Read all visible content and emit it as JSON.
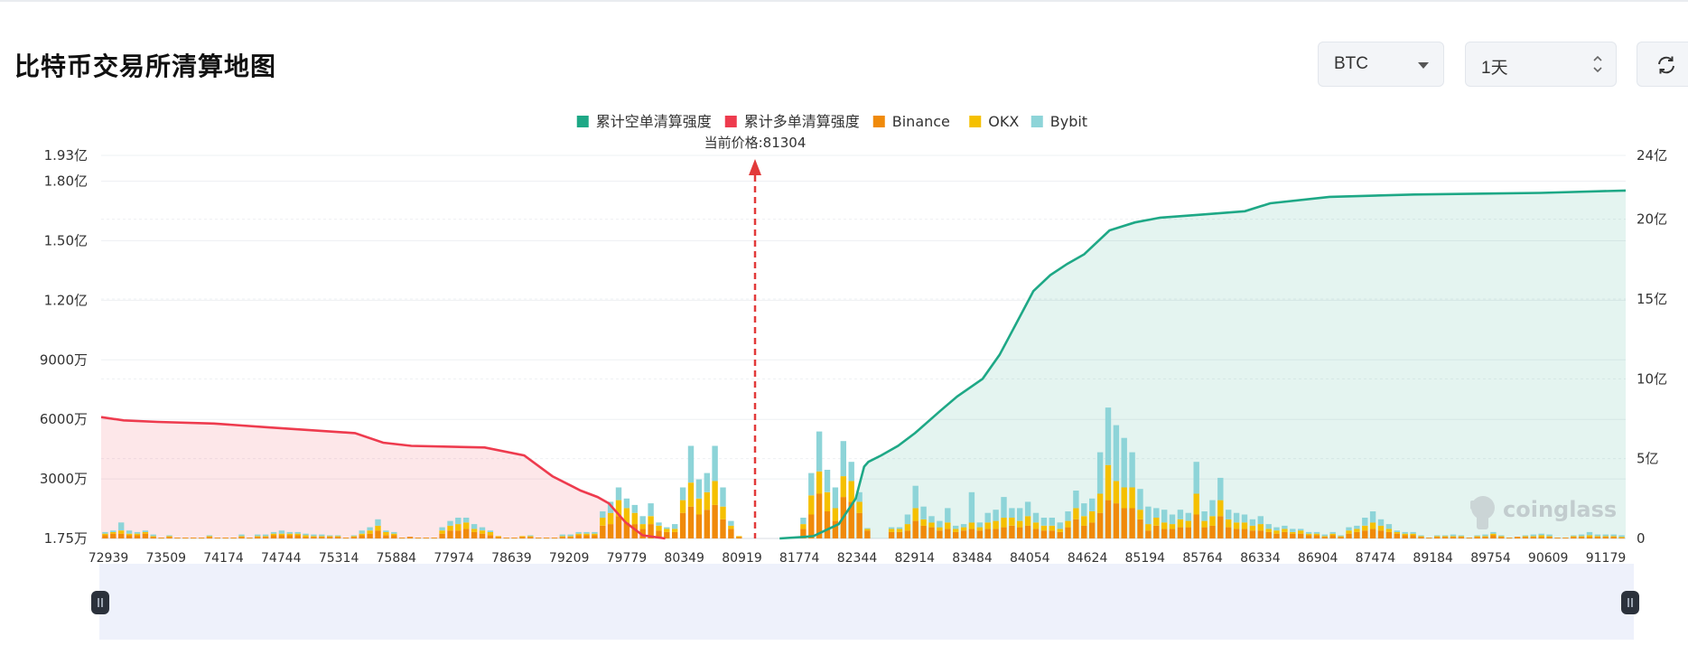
{
  "page": {
    "title": "比特币交易所清算地图"
  },
  "controls": {
    "coin": {
      "value": "BTC"
    },
    "period": {
      "value": "1天"
    },
    "refresh_icon": "refresh-icon",
    "coin_caret_icon": "chevron-down-icon",
    "period_icon": "up-down-icon"
  },
  "watermark": {
    "text": "coinglass",
    "icon": "coinglass-logo-icon"
  },
  "chart_data": {
    "type": "bar",
    "legend": [
      {
        "name": "累计空单清算强度",
        "color": "#1ea886"
      },
      {
        "name": "累计多单清算强度",
        "color": "#ee3b4e"
      },
      {
        "name": "Binance",
        "color": "#f08a0a"
      },
      {
        "name": "OKX",
        "color": "#f5c000"
      },
      {
        "name": "Bybit",
        "color": "#8dd4d8"
      }
    ],
    "legend_position": "top-center",
    "current_price_label": "当前价格:81304",
    "current_price": 81304,
    "x_tick_labels": [
      "72939",
      "73509",
      "74174",
      "74744",
      "75314",
      "75884",
      "77974",
      "78639",
      "79209",
      "79779",
      "80349",
      "80919",
      "81774",
      "82344",
      "82914",
      "83484",
      "84054",
      "84624",
      "85194",
      "85764",
      "86334",
      "86904",
      "87474",
      "89184",
      "89754",
      "90609",
      "91179"
    ],
    "left_axis": {
      "ticks": [
        "1.75万",
        "3000万",
        "6000万",
        "9000万",
        "1.20亿",
        "1.50亿",
        "1.80亿",
        "1.93亿"
      ],
      "values": [
        17500,
        30000000,
        60000000,
        90000000,
        120000000,
        150000000,
        180000000,
        193000000
      ],
      "range": [
        17500,
        193000000
      ]
    },
    "right_axis": {
      "ticks": [
        "0",
        "5亿",
        "10亿",
        "15亿",
        "20亿",
        "24亿"
      ],
      "values": [
        0,
        500000000,
        1000000000,
        1500000000,
        2000000000,
        2400000000
      ],
      "range": [
        0,
        2400000000
      ]
    },
    "grid": true,
    "bar_series_order": [
      "Binance",
      "OKX",
      "Bybit"
    ],
    "bars": [
      [
        0.02,
        0.01,
        0.01
      ],
      [
        0.03,
        0.01,
        0.01
      ],
      [
        0.03,
        0.02,
        0.05
      ],
      [
        0.02,
        0.01,
        0.02
      ],
      [
        0.02,
        0.01,
        0.01
      ],
      [
        0.03,
        0.01,
        0.01
      ],
      [
        0.01,
        0.005,
        0.01
      ],
      [
        0.005,
        0,
        0
      ],
      [
        0.01,
        0.005,
        0.005
      ],
      [
        0.005,
        0,
        0
      ],
      [
        0.005,
        0,
        0
      ],
      [
        0.005,
        0,
        0
      ],
      [
        0.005,
        0,
        0
      ],
      [
        0.01,
        0.005,
        0.005
      ],
      [
        0.005,
        0,
        0
      ],
      [
        0.005,
        0,
        0
      ],
      [
        0.005,
        0,
        0
      ],
      [
        0.01,
        0.005,
        0.01
      ],
      [
        0.005,
        0,
        0
      ],
      [
        0.01,
        0.005,
        0.01
      ],
      [
        0.01,
        0.005,
        0.01
      ],
      [
        0.02,
        0.01,
        0.01
      ],
      [
        0.02,
        0.01,
        0.02
      ],
      [
        0.02,
        0.01,
        0.01
      ],
      [
        0.02,
        0.01,
        0.01
      ],
      [
        0.01,
        0.01,
        0.01
      ],
      [
        0.01,
        0.005,
        0.01
      ],
      [
        0.01,
        0.005,
        0.01
      ],
      [
        0.01,
        0.005,
        0.005
      ],
      [
        0.01,
        0.005,
        0.005
      ],
      [
        0.005,
        0,
        0
      ],
      [
        0.01,
        0.005,
        0.005
      ],
      [
        0.02,
        0.01,
        0.02
      ],
      [
        0.03,
        0.02,
        0.02
      ],
      [
        0.05,
        0.03,
        0.04
      ],
      [
        0.02,
        0.02,
        0.01
      ],
      [
        0.02,
        0.01,
        0.01
      ],
      [
        0.005,
        0,
        0
      ],
      [
        0.01,
        0,
        0
      ],
      [
        0.005,
        0,
        0
      ],
      [
        0.005,
        0,
        0
      ],
      [
        0.005,
        0,
        0
      ],
      [
        0.03,
        0.02,
        0.02
      ],
      [
        0.05,
        0.03,
        0.03
      ],
      [
        0.05,
        0.04,
        0.04
      ],
      [
        0.06,
        0.04,
        0.03
      ],
      [
        0.04,
        0.02,
        0.03
      ],
      [
        0.03,
        0.02,
        0.02
      ],
      [
        0.02,
        0.02,
        0.01
      ],
      [
        0.01,
        0.005,
        0
      ],
      [
        0.005,
        0,
        0
      ],
      [
        0.005,
        0,
        0
      ],
      [
        0.01,
        0.005,
        0
      ],
      [
        0.01,
        0.005,
        0.005
      ],
      [
        0.005,
        0,
        0
      ],
      [
        0.005,
        0,
        0
      ],
      [
        0.005,
        0,
        0
      ],
      [
        0.01,
        0.005,
        0.01
      ],
      [
        0.01,
        0.005,
        0.01
      ],
      [
        0.02,
        0.01,
        0.01
      ],
      [
        0.02,
        0.01,
        0.01
      ],
      [
        0.02,
        0.01,
        0.01
      ],
      [
        0.08,
        0.05,
        0.04
      ],
      [
        0.09,
        0.07,
        0.07
      ],
      [
        0.14,
        0.1,
        0.08
      ],
      [
        0.1,
        0.09,
        0.06
      ],
      [
        0.09,
        0.07,
        0.05
      ],
      [
        0.06,
        0.03,
        0.05
      ],
      [
        0.09,
        0.05,
        0.08
      ],
      [
        0.05,
        0.03,
        0.02
      ],
      [
        0.04,
        0.02,
        0.01
      ],
      [
        0.04,
        0.02,
        0.03
      ],
      [
        0.16,
        0.08,
        0.08
      ],
      [
        0.2,
        0.15,
        0.23
      ],
      [
        0.15,
        0.1,
        0.12
      ],
      [
        0.18,
        0.11,
        0.12
      ],
      [
        0.21,
        0.15,
        0.22
      ],
      [
        0.12,
        0.08,
        0.12
      ],
      [
        0.06,
        0.02,
        0.03
      ],
      [
        0.01,
        0.005,
        0
      ],
      [
        0,
        0,
        0
      ],
      [
        0,
        0,
        0
      ],
      [
        0,
        0,
        0
      ],
      [
        0,
        0,
        0
      ],
      [
        0,
        0,
        0
      ],
      [
        0,
        0,
        0
      ],
      [
        0.005,
        0,
        0
      ],
      [
        0.06,
        0.03,
        0.04
      ],
      [
        0.15,
        0.12,
        0.14
      ],
      [
        0.28,
        0.14,
        0.25
      ],
      [
        0.17,
        0.12,
        0.14
      ],
      [
        0.11,
        0.08,
        0.13
      ],
      [
        0.26,
        0.13,
        0.22
      ],
      [
        0.23,
        0.13,
        0.12
      ],
      [
        0.16,
        0.07,
        0.06
      ],
      [
        0.05,
        0.01,
        0.005
      ],
      [
        0,
        0,
        0
      ],
      [
        0,
        0,
        0
      ],
      [
        0.04,
        0.02,
        0.01
      ],
      [
        0.04,
        0.02,
        0.01
      ],
      [
        0.05,
        0.04,
        0.06
      ],
      [
        0.11,
        0.08,
        0.14
      ],
      [
        0.08,
        0.04,
        0.08
      ],
      [
        0.07,
        0.03,
        0.04
      ],
      [
        0.05,
        0.02,
        0.04
      ],
      [
        0.06,
        0.04,
        0.09
      ],
      [
        0.04,
        0.02,
        0.02
      ],
      [
        0.05,
        0.02,
        0.02
      ],
      [
        0.06,
        0.04,
        0.19
      ],
      [
        0.05,
        0.02,
        0.03
      ],
      [
        0.06,
        0.04,
        0.06
      ],
      [
        0.06,
        0.05,
        0.07
      ],
      [
        0.07,
        0.06,
        0.13
      ],
      [
        0.08,
        0.05,
        0.06
      ],
      [
        0.07,
        0.04,
        0.08
      ],
      [
        0.08,
        0.06,
        0.09
      ],
      [
        0.06,
        0.04,
        0.06
      ],
      [
        0.05,
        0.03,
        0.05
      ],
      [
        0.05,
        0.03,
        0.05
      ],
      [
        0.04,
        0.02,
        0.04
      ],
      [
        0.07,
        0.04,
        0.06
      ],
      [
        0.12,
        0.07,
        0.11
      ],
      [
        0.08,
        0.06,
        0.08
      ],
      [
        0.1,
        0.07,
        0.08
      ],
      [
        0.16,
        0.12,
        0.26
      ],
      [
        0.24,
        0.22,
        0.36
      ],
      [
        0.22,
        0.14,
        0.35
      ],
      [
        0.19,
        0.13,
        0.31
      ],
      [
        0.19,
        0.13,
        0.22
      ],
      [
        0.12,
        0.06,
        0.13
      ],
      [
        0.05,
        0.04,
        0.11
      ],
      [
        0.08,
        0.05,
        0.06
      ],
      [
        0.06,
        0.04,
        0.08
      ],
      [
        0.06,
        0.03,
        0.06
      ],
      [
        0.07,
        0.05,
        0.06
      ],
      [
        0.07,
        0.04,
        0.05
      ],
      [
        0.15,
        0.13,
        0.2
      ],
      [
        0.07,
        0.04,
        0.06
      ],
      [
        0.08,
        0.06,
        0.1
      ],
      [
        0.14,
        0.1,
        0.14
      ],
      [
        0.07,
        0.05,
        0.06
      ],
      [
        0.06,
        0.04,
        0.06
      ],
      [
        0.06,
        0.04,
        0.05
      ],
      [
        0.05,
        0.03,
        0.04
      ],
      [
        0.05,
        0.04,
        0.05
      ],
      [
        0.04,
        0.02,
        0.03
      ],
      [
        0.03,
        0.02,
        0.02
      ],
      [
        0.04,
        0.02,
        0.02
      ],
      [
        0.03,
        0.01,
        0.02
      ],
      [
        0.03,
        0.02,
        0.01
      ],
      [
        0.02,
        0.01,
        0.01
      ],
      [
        0.02,
        0.01,
        0.01
      ],
      [
        0.01,
        0.005,
        0.01
      ],
      [
        0.02,
        0.01,
        0.01
      ],
      [
        0.01,
        0.005,
        0.005
      ],
      [
        0.03,
        0.02,
        0.02
      ],
      [
        0.04,
        0.02,
        0.02
      ],
      [
        0.05,
        0.03,
        0.05
      ],
      [
        0.06,
        0.04,
        0.07
      ],
      [
        0.05,
        0.03,
        0.04
      ],
      [
        0.04,
        0.02,
        0.03
      ],
      [
        0.03,
        0.01,
        0.01
      ],
      [
        0.02,
        0.01,
        0.01
      ],
      [
        0.02,
        0.01,
        0.01
      ],
      [
        0.01,
        0.005,
        0.005
      ],
      [
        0.005,
        0,
        0
      ],
      [
        0.01,
        0.005,
        0.005
      ],
      [
        0.01,
        0.005,
        0.005
      ],
      [
        0.01,
        0.005,
        0.01
      ],
      [
        0.01,
        0.005,
        0.005
      ],
      [
        0.005,
        0,
        0
      ],
      [
        0.01,
        0.005,
        0.005
      ],
      [
        0.01,
        0.005,
        0.01
      ],
      [
        0.02,
        0.01,
        0.01
      ],
      [
        0.01,
        0.005,
        0.005
      ],
      [
        0.005,
        0,
        0
      ],
      [
        0.01,
        0,
        0
      ],
      [
        0.01,
        0.005,
        0.005
      ],
      [
        0.01,
        0.005,
        0.01
      ],
      [
        0.01,
        0.01,
        0.01
      ],
      [
        0.01,
        0.005,
        0.01
      ],
      [
        0.005,
        0,
        0
      ],
      [
        0.005,
        0,
        0
      ],
      [
        0.01,
        0.005,
        0.005
      ],
      [
        0.01,
        0.005,
        0.01
      ],
      [
        0.01,
        0.01,
        0.02
      ],
      [
        0.01,
        0.005,
        0.01
      ],
      [
        0.01,
        0.005,
        0.01
      ],
      [
        0.01,
        0.005,
        0.01
      ],
      [
        0.005,
        0.005,
        0.01
      ]
    ],
    "short_cumulative": [
      [
        0.0,
        0
      ],
      [
        0.03,
        10000000.0
      ],
      [
        0.04,
        15000000.0
      ],
      [
        0.07,
        90000000.0
      ],
      [
        0.09,
        250000000.0
      ],
      [
        0.1,
        450000000.0
      ],
      [
        0.105,
        480000000.0
      ],
      [
        0.12,
        520000000.0
      ],
      [
        0.14,
        580000000.0
      ],
      [
        0.16,
        660000000.0
      ],
      [
        0.19,
        800000000.0
      ],
      [
        0.21,
        890000000.0
      ],
      [
        0.24,
        1000000000.0
      ],
      [
        0.26,
        1150000000.0
      ],
      [
        0.27,
        1250000000.0
      ],
      [
        0.28,
        1350000000.0
      ],
      [
        0.3,
        1550000000.0
      ],
      [
        0.32,
        1650000000.0
      ],
      [
        0.34,
        1720000000.0
      ],
      [
        0.36,
        1780000000.0
      ],
      [
        0.39,
        1930000000.0
      ],
      [
        0.42,
        1980000000.0
      ],
      [
        0.45,
        2010000000.0
      ],
      [
        0.5,
        2030000000.0
      ],
      [
        0.55,
        2050000000.0
      ],
      [
        0.58,
        2100000000.0
      ],
      [
        0.65,
        2140000000.0
      ],
      [
        0.75,
        2155000000.0
      ],
      [
        0.9,
        2165000000.0
      ],
      [
        1.0,
        2180000000.0
      ]
    ],
    "long_cumulative": [
      [
        0.0,
        760000000.0
      ],
      [
        0.04,
        740000000.0
      ],
      [
        0.1,
        730000000.0
      ],
      [
        0.2,
        720000000.0
      ],
      [
        0.3,
        695000000.0
      ],
      [
        0.45,
        660000000.0
      ],
      [
        0.5,
        600000000.0
      ],
      [
        0.55,
        580000000.0
      ],
      [
        0.68,
        570000000.0
      ],
      [
        0.75,
        520000000.0
      ],
      [
        0.8,
        390000000.0
      ],
      [
        0.85,
        300000000.0
      ],
      [
        0.88,
        260000000.0
      ],
      [
        0.9,
        220000000.0
      ],
      [
        0.93,
        100000000.0
      ],
      [
        0.96,
        20000000.0
      ],
      [
        1.0,
        0
      ]
    ]
  }
}
